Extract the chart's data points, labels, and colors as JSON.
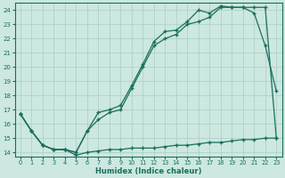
{
  "xlabel": "Humidex (Indice chaleur)",
  "bg_color": "#cce8e0",
  "grid_color": "#aaccc4",
  "line_color": "#1a6e5e",
  "xlim": [
    -0.5,
    23.5
  ],
  "ylim": [
    13.7,
    24.5
  ],
  "yticks": [
    14,
    15,
    16,
    17,
    18,
    19,
    20,
    21,
    22,
    23,
    24
  ],
  "xticks": [
    0,
    1,
    2,
    3,
    4,
    5,
    6,
    7,
    8,
    9,
    10,
    11,
    12,
    13,
    14,
    15,
    16,
    17,
    18,
    19,
    20,
    21,
    22,
    23
  ],
  "line1_x": [
    0,
    1,
    2,
    3,
    4,
    5,
    6,
    7,
    8,
    9,
    10,
    11,
    12,
    13,
    14,
    15,
    16,
    17,
    18,
    19,
    20,
    21,
    22,
    23
  ],
  "line1_y": [
    16.7,
    15.5,
    14.5,
    14.2,
    14.2,
    13.8,
    14.0,
    14.1,
    14.2,
    14.2,
    14.3,
    14.3,
    14.3,
    14.4,
    14.5,
    14.5,
    14.6,
    14.7,
    14.7,
    14.8,
    14.9,
    14.9,
    15.0,
    15.0
  ],
  "line2_x": [
    0,
    1,
    2,
    3,
    4,
    5,
    6,
    7,
    8,
    9,
    10,
    11,
    12,
    13,
    14,
    15,
    16,
    17,
    18,
    19,
    20,
    21,
    22,
    23
  ],
  "line2_y": [
    16.7,
    15.5,
    14.5,
    14.2,
    14.2,
    14.0,
    15.5,
    16.3,
    16.8,
    17.0,
    18.5,
    20.0,
    21.5,
    22.0,
    22.3,
    23.0,
    23.2,
    23.5,
    24.2,
    24.2,
    24.2,
    23.8,
    21.5,
    18.3
  ],
  "line3_x": [
    0,
    1,
    2,
    3,
    4,
    5,
    6,
    7,
    8,
    9,
    10,
    11,
    12,
    13,
    14,
    15,
    16,
    17,
    18,
    19,
    20,
    21,
    22,
    23
  ],
  "line3_y": [
    16.7,
    15.5,
    14.5,
    14.2,
    14.2,
    14.0,
    15.5,
    16.8,
    17.0,
    17.3,
    18.7,
    20.2,
    21.8,
    22.5,
    22.6,
    23.2,
    24.0,
    23.8,
    24.3,
    24.2,
    24.2,
    24.2,
    24.2,
    15.0
  ]
}
